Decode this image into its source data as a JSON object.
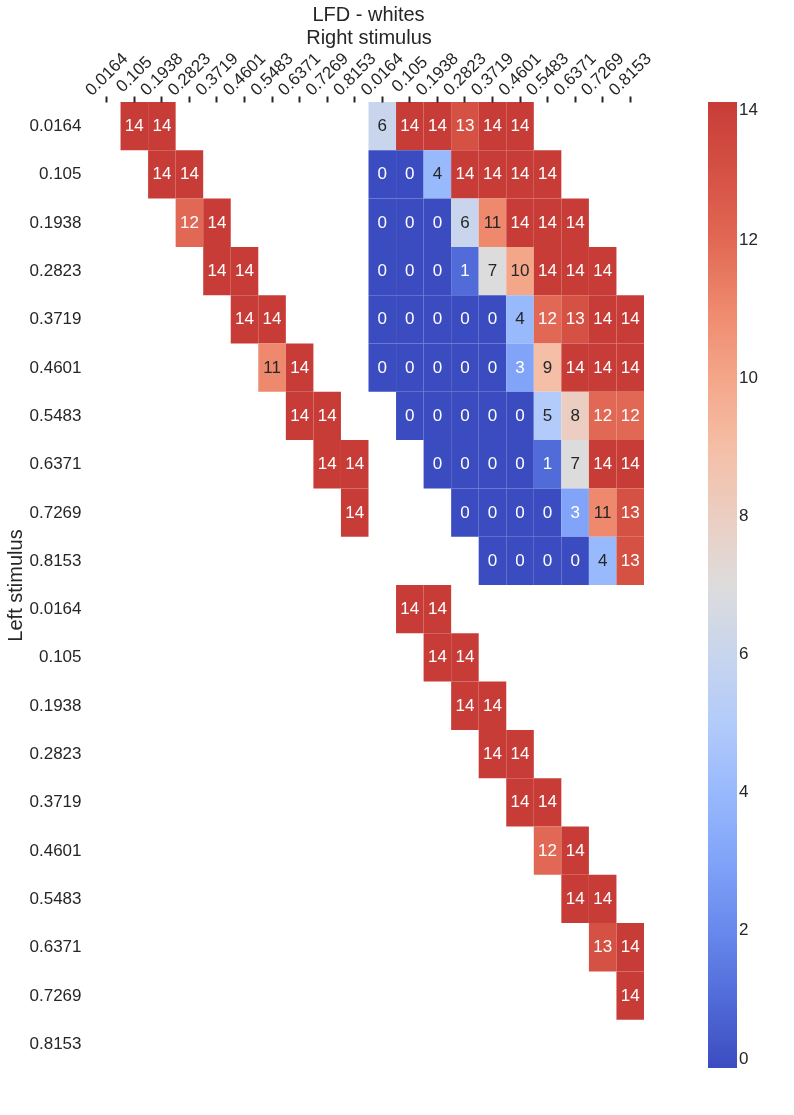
{
  "chart_data": {
    "type": "heatmap",
    "title": "LFD - whites",
    "xlabel": "Right stimulus",
    "ylabel": "Left stimulus",
    "categories": [
      "0.0164",
      "0.105",
      "0.1938",
      "0.2823",
      "0.3719",
      "0.4601",
      "0.5483",
      "0.6371",
      "0.7269",
      "0.8153",
      "0.0164",
      "0.105",
      "0.1938",
      "0.2823",
      "0.3719",
      "0.4601",
      "0.5483",
      "0.6371",
      "0.7269",
      "0.8153"
    ],
    "y_categories": [
      "0.0164",
      "0.105",
      "0.1938",
      "0.2823",
      "0.3719",
      "0.4601",
      "0.5483",
      "0.6371",
      "0.7269",
      "0.8153",
      "0.0164",
      "0.105",
      "0.1938",
      "0.2823",
      "0.3719",
      "0.4601",
      "0.5483",
      "0.6371",
      "0.7269",
      "0.8153"
    ],
    "cells": [
      [
        null,
        14,
        14,
        null,
        null,
        null,
        null,
        null,
        null,
        null,
        6,
        14,
        14,
        13,
        14,
        14,
        null,
        null,
        null,
        null
      ],
      [
        null,
        null,
        14,
        14,
        null,
        null,
        null,
        null,
        null,
        null,
        0,
        0,
        4,
        14,
        14,
        14,
        14,
        null,
        null,
        null
      ],
      [
        null,
        null,
        null,
        12,
        14,
        null,
        null,
        null,
        null,
        null,
        0,
        0,
        0,
        6,
        11,
        14,
        14,
        14,
        null,
        null
      ],
      [
        null,
        null,
        null,
        null,
        14,
        14,
        null,
        null,
        null,
        null,
        0,
        0,
        0,
        1,
        7,
        10,
        14,
        14,
        14,
        null
      ],
      [
        null,
        null,
        null,
        null,
        null,
        14,
        14,
        null,
        null,
        null,
        0,
        0,
        0,
        0,
        0,
        4,
        12,
        13,
        14,
        14
      ],
      [
        null,
        null,
        null,
        null,
        null,
        null,
        11,
        14,
        null,
        null,
        0,
        0,
        0,
        0,
        0,
        3,
        9,
        14,
        14,
        14
      ],
      [
        null,
        null,
        null,
        null,
        null,
        null,
        null,
        14,
        14,
        null,
        null,
        0,
        0,
        0,
        0,
        0,
        5,
        8,
        12,
        12
      ],
      [
        null,
        null,
        null,
        null,
        null,
        null,
        null,
        null,
        14,
        14,
        null,
        null,
        0,
        0,
        0,
        0,
        1,
        7,
        14,
        14
      ],
      [
        null,
        null,
        null,
        null,
        null,
        null,
        null,
        null,
        null,
        14,
        null,
        null,
        null,
        0,
        0,
        0,
        0,
        3,
        11,
        13
      ],
      [
        null,
        null,
        null,
        null,
        null,
        null,
        null,
        null,
        null,
        null,
        null,
        null,
        null,
        null,
        0,
        0,
        0,
        0,
        4,
        13
      ],
      [
        null,
        null,
        null,
        null,
        null,
        null,
        null,
        null,
        null,
        null,
        null,
        14,
        14,
        null,
        null,
        null,
        null,
        null,
        null,
        null
      ],
      [
        null,
        null,
        null,
        null,
        null,
        null,
        null,
        null,
        null,
        null,
        null,
        null,
        14,
        14,
        null,
        null,
        null,
        null,
        null,
        null
      ],
      [
        null,
        null,
        null,
        null,
        null,
        null,
        null,
        null,
        null,
        null,
        null,
        null,
        null,
        14,
        14,
        null,
        null,
        null,
        null,
        null
      ],
      [
        null,
        null,
        null,
        null,
        null,
        null,
        null,
        null,
        null,
        null,
        null,
        null,
        null,
        null,
        14,
        14,
        null,
        null,
        null,
        null
      ],
      [
        null,
        null,
        null,
        null,
        null,
        null,
        null,
        null,
        null,
        null,
        null,
        null,
        null,
        null,
        null,
        14,
        14,
        null,
        null,
        null
      ],
      [
        null,
        null,
        null,
        null,
        null,
        null,
        null,
        null,
        null,
        null,
        null,
        null,
        null,
        null,
        null,
        null,
        12,
        14,
        null,
        null
      ],
      [
        null,
        null,
        null,
        null,
        null,
        null,
        null,
        null,
        null,
        null,
        null,
        null,
        null,
        null,
        null,
        null,
        null,
        14,
        14,
        null
      ],
      [
        null,
        null,
        null,
        null,
        null,
        null,
        null,
        null,
        null,
        null,
        null,
        null,
        null,
        null,
        null,
        null,
        null,
        null,
        13,
        14
      ],
      [
        null,
        null,
        null,
        null,
        null,
        null,
        null,
        null,
        null,
        null,
        null,
        null,
        null,
        null,
        null,
        null,
        null,
        null,
        null,
        14
      ],
      [
        null,
        null,
        null,
        null,
        null,
        null,
        null,
        null,
        null,
        null,
        null,
        null,
        null,
        null,
        null,
        null,
        null,
        null,
        null,
        null
      ]
    ],
    "clim": [
      0,
      14
    ],
    "cticks": [
      0,
      2,
      4,
      6,
      8,
      10,
      12,
      14
    ],
    "data_labels": true
  }
}
